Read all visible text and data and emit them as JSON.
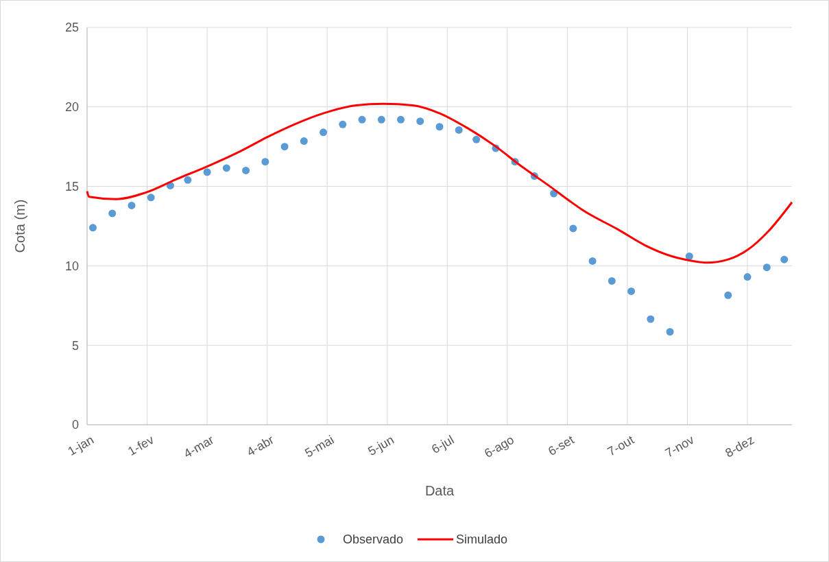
{
  "chart_data": {
    "type": "scatter",
    "xlabel": "Data",
    "ylabel": "Cota (m)",
    "xlim": [
      "--01-01",
      "--12-31"
    ],
    "ylim": [
      0,
      25
    ],
    "yticks": [
      0,
      5,
      10,
      15,
      20,
      25
    ],
    "xticks": [
      {
        "value": "--01-01",
        "label": "1-jan"
      },
      {
        "value": "--02-01",
        "label": "1-fev"
      },
      {
        "value": "--03-04",
        "label": "4-mar"
      },
      {
        "value": "--04-04",
        "label": "4-abr"
      },
      {
        "value": "--05-05",
        "label": "5-mai"
      },
      {
        "value": "--06-05",
        "label": "5-jun"
      },
      {
        "value": "--07-06",
        "label": "6-jul"
      },
      {
        "value": "--08-06",
        "label": "6-ago"
      },
      {
        "value": "--09-06",
        "label": "6-set"
      },
      {
        "value": "--10-07",
        "label": "7-out"
      },
      {
        "value": "--11-07",
        "label": "7-nov"
      },
      {
        "value": "--12-08",
        "label": "8-dez"
      }
    ],
    "grid": true,
    "legend": "bottom",
    "series": [
      {
        "name": "Observado",
        "marker": "circle",
        "color": "#5b9bd5",
        "x": [
          "--01-04",
          "--01-14",
          "--01-24",
          "--02-03",
          "--02-13",
          "--02-22",
          "--03-04",
          "--03-14",
          "--03-24",
          "--04-03",
          "--04-13",
          "--04-23",
          "--05-03",
          "--05-13",
          "--05-23",
          "--06-02",
          "--06-12",
          "--06-22",
          "--07-02",
          "--07-12",
          "--07-21",
          "--07-31",
          "--08-10",
          "--08-20",
          "--08-30",
          "--09-09",
          "--09-19",
          "--09-29",
          "--10-09",
          "--10-19",
          "--10-29",
          "--11-08",
          "--11-28",
          "--12-08",
          "--12-18",
          "--12-27"
        ],
        "values": [
          12.4,
          13.3,
          13.8,
          14.3,
          15.05,
          15.4,
          15.9,
          16.15,
          16.0,
          16.55,
          17.5,
          17.85,
          18.4,
          18.9,
          19.2,
          19.2,
          19.2,
          19.1,
          18.75,
          18.55,
          17.95,
          17.4,
          16.55,
          15.65,
          14.55,
          12.35,
          10.3,
          9.05,
          8.4,
          6.65,
          5.85,
          10.6,
          8.15,
          9.3,
          9.9,
          10.4
        ]
      },
      {
        "name": "Simulado",
        "type": "line",
        "marker": "none",
        "line_style": "solid",
        "color": "#ff0000",
        "x": [
          "--01-01",
          "--01-02",
          "--01-16",
          "--01-31",
          "--02-17",
          "--03-03",
          "--03-21",
          "--04-04",
          "--04-18",
          "--05-03",
          "--05-20",
          "--06-03",
          "--06-18",
          "--07-02",
          "--07-16",
          "--07-30",
          "--08-14",
          "--08-28",
          "--09-07",
          "--09-14",
          "--10-02",
          "--10-16",
          "--10-30",
          "--11-10",
          "--11-17",
          "--11-28",
          "--12-08",
          "--12-19",
          "--12-31"
        ],
        "values": [
          14.7,
          14.35,
          14.2,
          14.6,
          15.5,
          16.2,
          17.2,
          18.1,
          18.9,
          19.6,
          20.1,
          20.2,
          20.1,
          19.6,
          18.7,
          17.6,
          16.2,
          15.0,
          14.1,
          13.5,
          12.3,
          11.3,
          10.6,
          10.3,
          10.2,
          10.4,
          11.0,
          12.2,
          14.0
        ]
      }
    ]
  }
}
